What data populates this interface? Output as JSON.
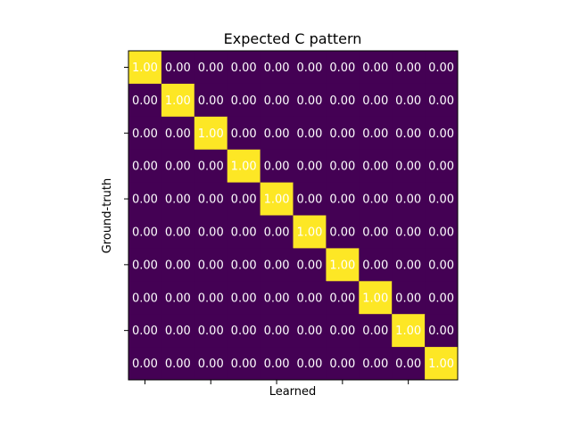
{
  "chart_data": {
    "type": "heatmap",
    "title": "Expected C pattern",
    "xlabel": "Learned",
    "ylabel": "Ground-truth",
    "rows": 10,
    "cols": 10,
    "values": [
      [
        1,
        0,
        0,
        0,
        0,
        0,
        0,
        0,
        0,
        0
      ],
      [
        0,
        1,
        0,
        0,
        0,
        0,
        0,
        0,
        0,
        0
      ],
      [
        0,
        0,
        1,
        0,
        0,
        0,
        0,
        0,
        0,
        0
      ],
      [
        0,
        0,
        0,
        1,
        0,
        0,
        0,
        0,
        0,
        0
      ],
      [
        0,
        0,
        0,
        0,
        1,
        0,
        0,
        0,
        0,
        0
      ],
      [
        0,
        0,
        0,
        0,
        0,
        1,
        0,
        0,
        0,
        0
      ],
      [
        0,
        0,
        0,
        0,
        0,
        0,
        1,
        0,
        0,
        0
      ],
      [
        0,
        0,
        0,
        0,
        0,
        0,
        0,
        1,
        0,
        0
      ],
      [
        0,
        0,
        0,
        0,
        0,
        0,
        0,
        0,
        1,
        0
      ],
      [
        0,
        0,
        0,
        0,
        0,
        0,
        0,
        0,
        0,
        1
      ]
    ],
    "value_format": "0.00",
    "colormap": "viridis",
    "vmin": 0,
    "vmax": 1,
    "colors": {
      "low": "#440154",
      "high": "#fde725",
      "label_text": "#ffffff",
      "frame": "#000000"
    },
    "grid": false,
    "tick_labels": false
  }
}
